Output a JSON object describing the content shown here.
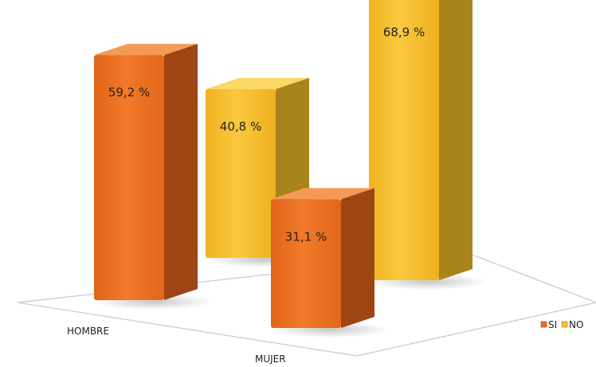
{
  "chart_data": {
    "type": "bar",
    "categories": [
      "HOMBRE",
      "MUJER"
    ],
    "series": [
      {
        "name": "SI",
        "values": [
          59.2,
          31.1
        ],
        "labels": [
          "59,2 %",
          "31,1 %"
        ]
      },
      {
        "name": "NO",
        "values": [
          40.8,
          68.9
        ],
        "labels": [
          "40,8 %",
          "68,9 %"
        ]
      }
    ],
    "ylim": [
      0,
      75
    ],
    "legend": "right",
    "grid": false,
    "colors": {
      "si_front": "#ec6d1e",
      "si_side": "#9e4514",
      "si_top": "#f39a55",
      "no_front": "#f7be2c",
      "no_side": "#a8841a",
      "no_top": "#fbd866",
      "floor": "#cfcfcf"
    }
  }
}
